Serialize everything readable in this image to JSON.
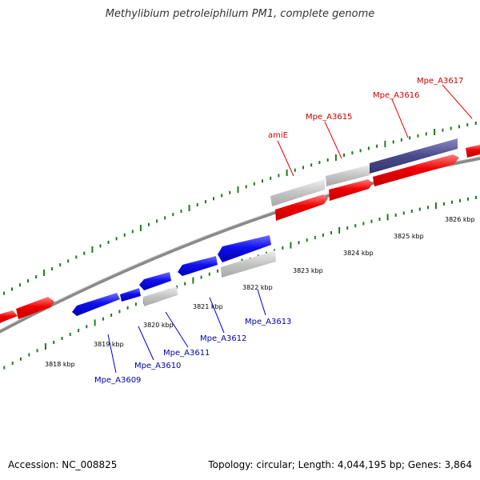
{
  "title": "Methylibium petroleiphilum PM1, complete genome",
  "footer": {
    "accession": "Accession: NC_008825",
    "summary": "Topology: circular; Length: 4,044,195 bp; Genes: 3,864"
  },
  "colors": {
    "forward_gene": "#ee0000",
    "reverse_gene": "#0000dd",
    "rna_gene": "#c0c0c0",
    "highlight_gene": "#4a4a8c",
    "forward_label": "#cc0000",
    "reverse_label": "#0000aa",
    "backbone": "#8a8a8a",
    "tick": "#1f7a1f"
  },
  "scale_ticks": [
    "3818 kbp",
    "3819 kbp",
    "3820 kbp",
    "3821 kbp",
    "3822 kbp",
    "3823 kbp",
    "3824 kbp",
    "3825 kbp",
    "3826 kbp"
  ],
  "forward_labels": [
    "amiE",
    "Mpe_A3615",
    "Mpe_A3616",
    "Mpe_A3617"
  ],
  "reverse_labels": [
    "Mpe_A3609",
    "Mpe_A3610",
    "Mpe_A3611",
    "Mpe_A3612",
    "Mpe_A3613"
  ]
}
